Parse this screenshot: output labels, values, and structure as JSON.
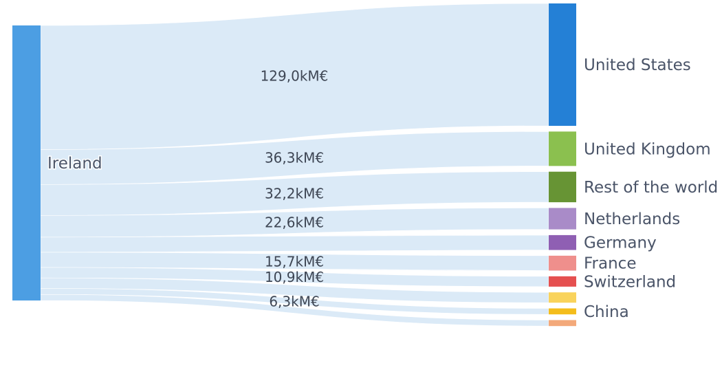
{
  "chart_data": {
    "type": "sankey",
    "title": "",
    "source": "Ireland",
    "source_color": "#4c9ee3",
    "link_color": "#dbeaf7",
    "targets": [
      {
        "name": "United States",
        "value": 129.0,
        "label": "129,0kM€",
        "color": "#2480d6"
      },
      {
        "name": "United Kingdom",
        "value": 36.3,
        "label": "36,3kM€",
        "color": "#8bc04f"
      },
      {
        "name": "Rest of the world",
        "value": 32.2,
        "label": "32,2kM€",
        "color": "#679434"
      },
      {
        "name": "Netherlands",
        "value": 22.6,
        "label": "22,6kM€",
        "color": "#a98bc8"
      },
      {
        "name": "Germany",
        "value": 15.7,
        "label": "",
        "color": "#8f5fb3"
      },
      {
        "name": "France",
        "value": 15.7,
        "label": "15,7kM€",
        "color": "#ef8f8c"
      },
      {
        "name": "Switzerland",
        "value": 10.9,
        "label": "10,9kM€",
        "color": "#e55050"
      },
      {
        "name": "",
        "value": 10.9,
        "label": "",
        "color": "#f9d35c"
      },
      {
        "name": "China",
        "value": 6.3,
        "label": "6,3kM€",
        "color": "#f4bd1c"
      },
      {
        "name": "",
        "value": 6.3,
        "label": "",
        "color": "#f3a97a"
      }
    ]
  }
}
